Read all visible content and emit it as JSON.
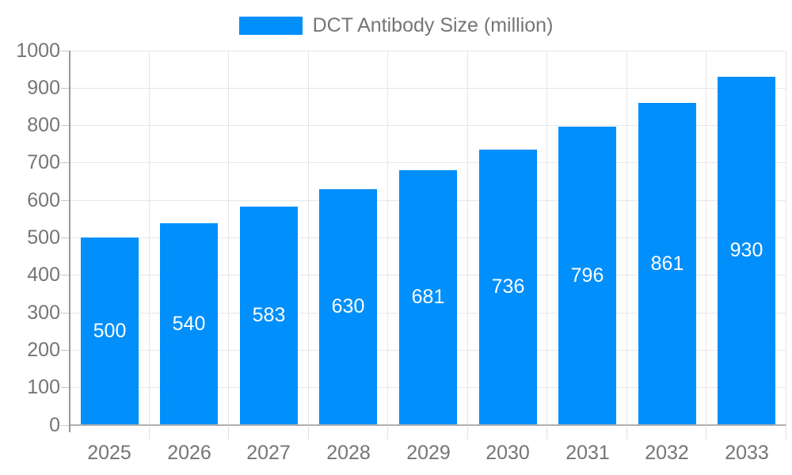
{
  "legend": {
    "label": "DCT Antibody Size (million)"
  },
  "chart_data": {
    "type": "bar",
    "title": "DCT Antibody Size (million)",
    "categories": [
      "2025",
      "2026",
      "2027",
      "2028",
      "2029",
      "2030",
      "2031",
      "2032",
      "2033"
    ],
    "values": [
      500,
      540,
      583,
      630,
      681,
      736,
      796,
      861,
      930
    ],
    "xlabel": "",
    "ylabel": "",
    "ylim": [
      0,
      1000
    ],
    "ytick_step": 100,
    "grid": true,
    "legend_position": "top-center",
    "colors": {
      "bar": "#008ffb",
      "value_label": "#ffffff",
      "axis_label": "#757575",
      "gridline": "#e6e6e6",
      "baseline": "#b0b0b0",
      "axis_line": "#999999"
    }
  }
}
